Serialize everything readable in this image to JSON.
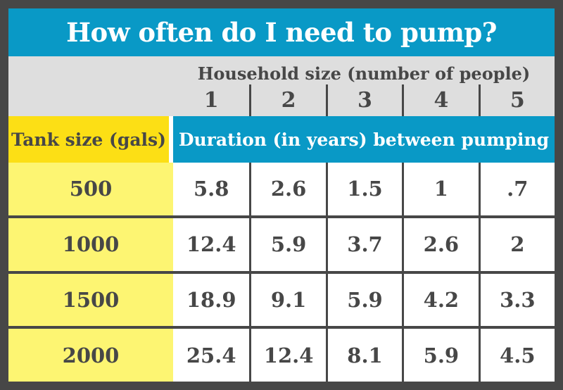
{
  "title": "How often do I need to pump?",
  "table": {
    "household_header": "Household size (number of people)",
    "household_sizes": [
      "1",
      "2",
      "3",
      "4",
      "5"
    ],
    "tank_header": "Tank size (gals)",
    "duration_header": "Duration (in years) between pumping",
    "rows": [
      {
        "tank": "500",
        "values": [
          "5.8",
          "2.6",
          "1.5",
          "1",
          ".7"
        ]
      },
      {
        "tank": "1000",
        "values": [
          "12.4",
          "5.9",
          "3.7",
          "2.6",
          "2"
        ]
      },
      {
        "tank": "1500",
        "values": [
          "18.9",
          "9.1",
          "5.9",
          "4.2",
          "3.3"
        ]
      },
      {
        "tank": "2000",
        "values": [
          "25.4",
          "12.4",
          "8.1",
          "5.9",
          "4.5"
        ]
      }
    ]
  },
  "colors": {
    "frame": "#474747",
    "cyan": "#0999c6",
    "gray_band": "#dedede",
    "yellow_strong": "#fcdf15",
    "yellow_light": "#fdf572",
    "text_dark": "#474747",
    "white": "#ffffff"
  },
  "chart_data": {
    "type": "table",
    "title": "How often do I need to pump?",
    "column_group_label": "Household size (number of people)",
    "columns": [
      1,
      2,
      3,
      4,
      5
    ],
    "row_label": "Tank size (gals)",
    "value_label": "Duration (in years) between pumping",
    "rows": [
      {
        "tank_size_gals": 500,
        "years_between_pumping": [
          5.8,
          2.6,
          1.5,
          1,
          0.7
        ]
      },
      {
        "tank_size_gals": 1000,
        "years_between_pumping": [
          12.4,
          5.9,
          3.7,
          2.6,
          2
        ]
      },
      {
        "tank_size_gals": 1500,
        "years_between_pumping": [
          18.9,
          9.1,
          5.9,
          4.2,
          3.3
        ]
      },
      {
        "tank_size_gals": 2000,
        "years_between_pumping": [
          25.4,
          12.4,
          8.1,
          5.9,
          4.5
        ]
      }
    ]
  }
}
